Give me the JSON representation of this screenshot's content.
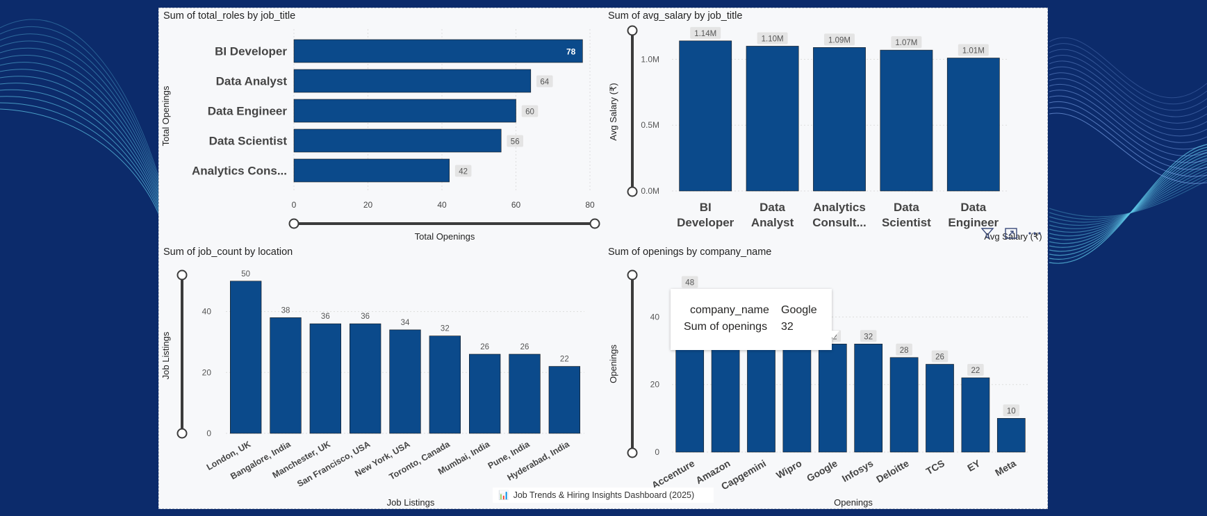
{
  "footer": {
    "icon": "bar-chart-emoji-icon",
    "icon_glyph": "📊",
    "text": "Job Trends & Hiring Insights Dashboard (2025)"
  },
  "header_icons": [
    "filter-icon",
    "focus-mode-icon",
    "more-options-icon"
  ],
  "colors": {
    "bar": "#0b4a8b",
    "background": "#0b2a6a",
    "canvas": "#f7f8fa"
  },
  "tooltip": {
    "rows": [
      {
        "label": "company_name",
        "value": "Google"
      },
      {
        "label": "Sum of openings",
        "value": "32"
      }
    ]
  },
  "charts": {
    "roles": {
      "title": "Sum of total_roles by job_title"
    },
    "salary": {
      "title": "Sum of avg_salary by job_title"
    },
    "location": {
      "title": "Sum of job_count by location"
    },
    "company": {
      "title": "Sum of openings by company_name"
    }
  },
  "chart_data": [
    {
      "id": "roles",
      "type": "bar",
      "orientation": "horizontal",
      "title": "Sum of total_roles by job_title",
      "categories": [
        "BI Developer",
        "Data Analyst",
        "Data Engineer",
        "Data Scientist",
        "Analytics Cons..."
      ],
      "values": [
        78,
        64,
        60,
        56,
        42
      ],
      "data_labels": [
        "78",
        "64",
        "60",
        "56",
        "42"
      ],
      "xlabel": "Total Openings",
      "ylabel": "Total Openings",
      "xlim": [
        0,
        80
      ],
      "ticks": [
        0,
        20,
        40,
        60,
        80
      ],
      "tick_labels": [
        "0",
        "20",
        "40",
        "60",
        "80"
      ],
      "grid": true
    },
    {
      "id": "salary",
      "type": "bar",
      "title": "Sum of avg_salary by job_title",
      "categories": [
        [
          "BI",
          "Developer"
        ],
        [
          "Data",
          "Analyst"
        ],
        [
          "Analytics",
          "Consult..."
        ],
        [
          "Data",
          "Scientist"
        ],
        [
          "Data",
          "Engineer"
        ]
      ],
      "values": [
        1140000,
        1100000,
        1090000,
        1070000,
        1010000
      ],
      "data_labels": [
        "1.14M",
        "1.10M",
        "1.09M",
        "1.07M",
        "1.01M"
      ],
      "xlabel": "Avg Salary (₹)",
      "ylabel": "Avg Salary (₹)",
      "ylim": [
        0,
        1250000
      ],
      "ticks": [
        0,
        500000,
        1000000
      ],
      "tick_labels": [
        "0.0M",
        "0.5M",
        "1.0M"
      ],
      "grid": true
    },
    {
      "id": "location",
      "type": "bar",
      "title": "Sum of job_count by location",
      "categories": [
        "London, UK",
        "Bangalore, India",
        "Manchester, UK",
        "San Francisco, USA",
        "New York, USA",
        "Toronto, Canada",
        "Mumbai, India",
        "Pune, India",
        "Hyderabad, India"
      ],
      "values": [
        50,
        38,
        36,
        36,
        34,
        32,
        26,
        26,
        22
      ],
      "data_labels": [
        "50",
        "38",
        "36",
        "36",
        "34",
        "32",
        "26",
        "26",
        "22"
      ],
      "xlabel": "Job Listings",
      "ylabel": "Job Listings",
      "ylim": [
        0,
        52
      ],
      "ticks": [
        0,
        20,
        40
      ],
      "tick_labels": [
        "0",
        "20",
        "40"
      ],
      "grid": true
    },
    {
      "id": "company",
      "type": "bar",
      "title": "Sum of openings by company_name",
      "categories": [
        "Accenture",
        "Amazon",
        "Capgemini",
        "Wipro",
        "Google",
        "Infosys",
        "Deloitte",
        "TCS",
        "EY",
        "Meta"
      ],
      "values": [
        48,
        32,
        32,
        32,
        32,
        32,
        28,
        26,
        22,
        10
      ],
      "data_labels": [
        "48",
        "",
        "",
        "",
        "32",
        "32",
        "28",
        "26",
        "22",
        "10"
      ],
      "xlabel": "Openings",
      "ylabel": "Openings",
      "ylim": [
        0,
        52
      ],
      "ticks": [
        0,
        20,
        40
      ],
      "tick_labels": [
        "0",
        "20",
        "40"
      ],
      "grid": true
    }
  ]
}
